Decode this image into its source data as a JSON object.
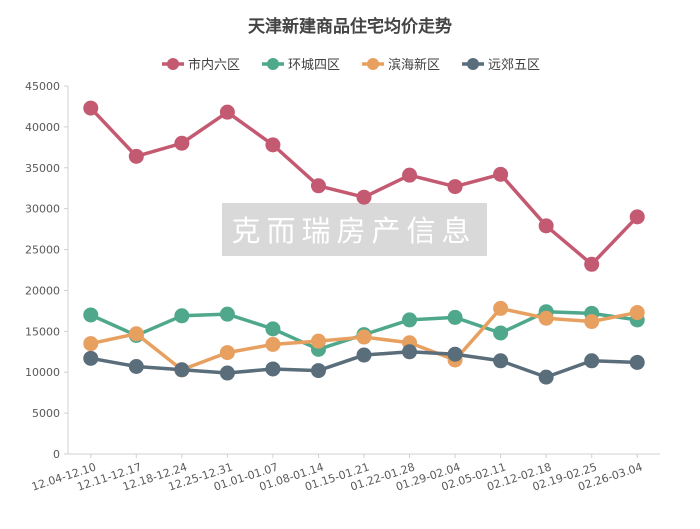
{
  "chart_data": {
    "type": "line",
    "title": "天津新建商品住宅均价走势",
    "watermark": "克而瑞房产信息",
    "categories": [
      "12.04-12.10",
      "12.11-12.17",
      "12.18-12.24",
      "12.25-12.31",
      "01.01-01.07",
      "01.08-01.14",
      "01.15-01.21",
      "01.22-01.28",
      "01.29-02.04",
      "02.05-02.11",
      "02.12-02.18",
      "02.19-02.25",
      "02.26-03.04"
    ],
    "ylim": [
      0,
      45000
    ],
    "yticks": [
      0,
      5000,
      10000,
      15000,
      20000,
      25000,
      30000,
      35000,
      40000,
      45000
    ],
    "legend_position": "top",
    "grid": false,
    "series": [
      {
        "name": "市内六区",
        "color": "#c45a72",
        "values": [
          42300,
          36400,
          38000,
          41800,
          37800,
          32800,
          31400,
          34100,
          32700,
          34200,
          27900,
          23200,
          29000
        ]
      },
      {
        "name": "环城四区",
        "color": "#4fa88c",
        "values": [
          17000,
          14500,
          16900,
          17100,
          15300,
          12800,
          14600,
          16400,
          16700,
          14800,
          17400,
          17200,
          16400
        ]
      },
      {
        "name": "滨海新区",
        "color": "#e8a060",
        "values": [
          13500,
          14700,
          10300,
          12400,
          13400,
          13800,
          14300,
          13600,
          11500,
          17800,
          16600,
          16200,
          17300
        ]
      },
      {
        "name": "远郊五区",
        "color": "#5a6d7a",
        "values": [
          11700,
          10700,
          10300,
          9900,
          10400,
          10200,
          12100,
          12500,
          12200,
          11400,
          9400,
          11400,
          11200
        ]
      }
    ]
  }
}
